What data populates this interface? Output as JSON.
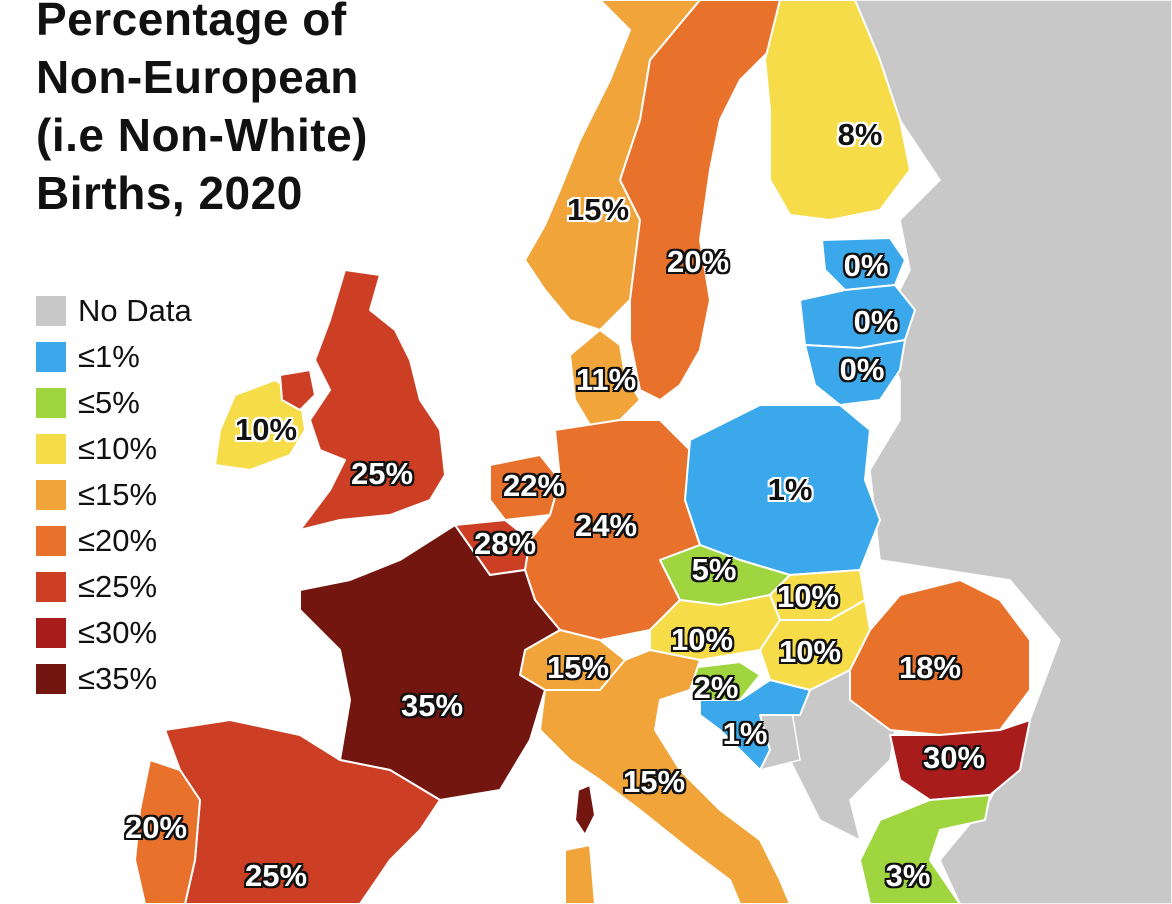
{
  "title": "Percentage of\nNon-European\n(i.e Non-White)\nBirths, 2020",
  "legend": [
    {
      "label": "No Data",
      "color": "#c8c8c8"
    },
    {
      "label": "≤1%",
      "color": "#3aa8ea"
    },
    {
      "label": "≤5%",
      "color": "#9fd640"
    },
    {
      "label": "≤10%",
      "color": "#f5dc48"
    },
    {
      "label": "≤15%",
      "color": "#f0a43a"
    },
    {
      "label": "≤20%",
      "color": "#e8722c"
    },
    {
      "label": "≤25%",
      "color": "#cc3f24"
    },
    {
      "label": "≤30%",
      "color": "#a81c1c"
    },
    {
      "label": "≤35%",
      "color": "#741610"
    }
  ],
  "regions": [
    {
      "name": "finland",
      "label": "8%"
    },
    {
      "name": "norway",
      "label": "15%"
    },
    {
      "name": "sweden",
      "label": "20%"
    },
    {
      "name": "estonia",
      "label": "0%"
    },
    {
      "name": "latvia",
      "label": "0%"
    },
    {
      "name": "lithuania",
      "label": "0%"
    },
    {
      "name": "denmark",
      "label": "11%"
    },
    {
      "name": "ireland",
      "label": "10%"
    },
    {
      "name": "united-kingdom",
      "label": "25%"
    },
    {
      "name": "netherlands",
      "label": "22%"
    },
    {
      "name": "belgium",
      "label": "28%"
    },
    {
      "name": "germany",
      "label": "24%"
    },
    {
      "name": "poland",
      "label": "1%"
    },
    {
      "name": "czechia",
      "label": "5%"
    },
    {
      "name": "slovakia",
      "label": "10%"
    },
    {
      "name": "austria",
      "label": "10%"
    },
    {
      "name": "hungary",
      "label": "10%"
    },
    {
      "name": "switzerland",
      "label": "15%"
    },
    {
      "name": "slovenia",
      "label": "2%"
    },
    {
      "name": "croatia",
      "label": "1%"
    },
    {
      "name": "romania",
      "label": "18%"
    },
    {
      "name": "bulgaria",
      "label": "30%"
    },
    {
      "name": "france",
      "label": "35%"
    },
    {
      "name": "italy",
      "label": "15%"
    },
    {
      "name": "portugal",
      "label": "20%"
    },
    {
      "name": "spain",
      "label": "25%"
    },
    {
      "name": "greece",
      "label": "3%"
    }
  ]
}
